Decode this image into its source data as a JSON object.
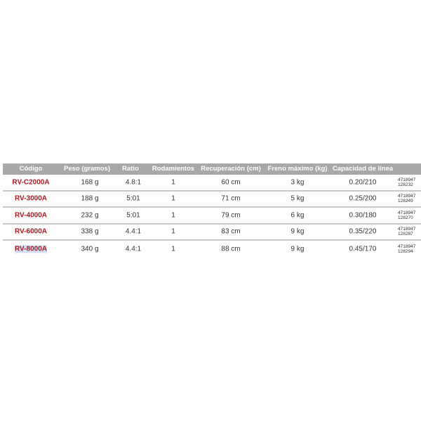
{
  "headers": [
    "Código",
    "Peso (gramos)",
    "Ratio",
    "Rodamientos",
    "Recuperación (cm)",
    "Freno máximo (kg)",
    "Capacidad de línea"
  ],
  "rows": [
    {
      "code": "RV-C2000A",
      "peso": "168 g",
      "ratio": "4.8:1",
      "rod": "1",
      "rec": "60 cm",
      "freno": "3 kg",
      "cap": "0.20/210",
      "ean1": "4718947",
      "ean2": "128232"
    },
    {
      "code": "RV-3000A",
      "peso": "188 g",
      "ratio": "5:01",
      "rod": "1",
      "rec": "71 cm",
      "freno": "5 kg",
      "cap": "0.25/200",
      "ean1": "4718947",
      "ean2": "128249"
    },
    {
      "code": "RV-4000A",
      "peso": "232 g",
      "ratio": "5:01",
      "rod": "1",
      "rec": "79 cm",
      "freno": "6 kg",
      "cap": "0.30/180",
      "ean1": "4718947",
      "ean2": "128270"
    },
    {
      "code": "RV-6000A",
      "peso": "338 g",
      "ratio": "4.4:1",
      "rod": "1",
      "rec": "83 cm",
      "freno": "9 kg",
      "cap": "0.35/220",
      "ean1": "4718947",
      "ean2": "128287"
    },
    {
      "code": "RV-8000A",
      "peso": "340 g",
      "ratio": "4.4:1",
      "rod": "1",
      "rec": "88 cm",
      "freno": "9 kg",
      "cap": "0.45/170",
      "ean1": "4718947",
      "ean2": "128294"
    }
  ],
  "colors": {
    "header_bg": "#a8a8a8",
    "code_red": "#a51c24",
    "selection": "#cfe0f5"
  }
}
